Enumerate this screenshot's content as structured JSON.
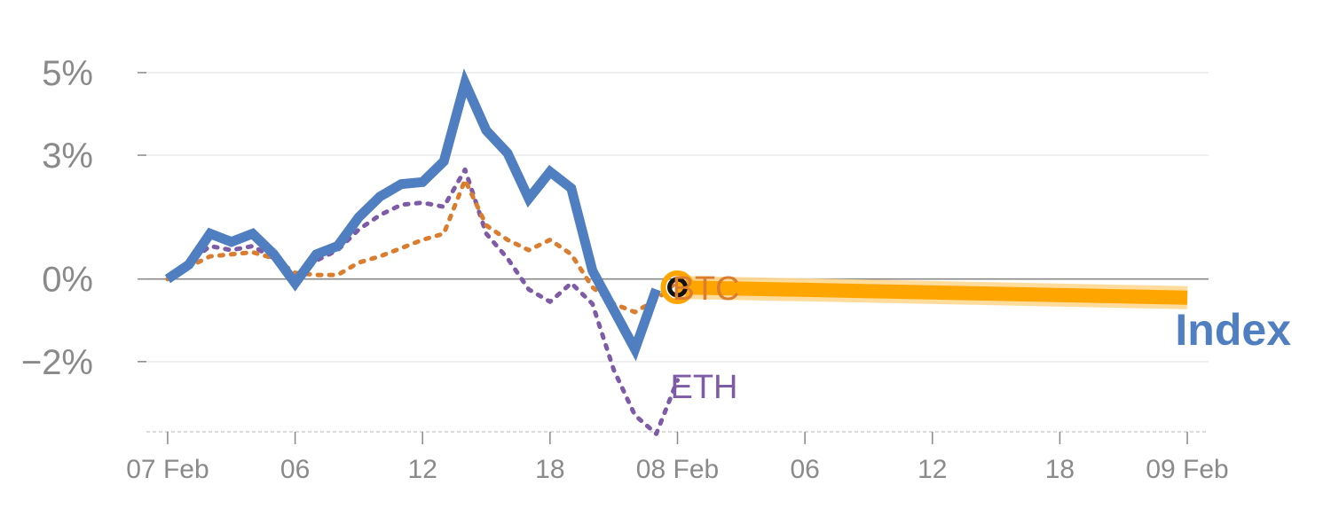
{
  "chart_data": {
    "type": "line",
    "x_ticks": [
      "07 Feb",
      "06",
      "12",
      "18",
      "08 Feb",
      "06",
      "12",
      "18",
      "09 Feb"
    ],
    "x_tick_hours": [
      0,
      6,
      12,
      18,
      24,
      30,
      36,
      42,
      48
    ],
    "y_ticks": [
      {
        "value": 5,
        "label": "5%"
      },
      {
        "value": 3,
        "label": "3%"
      },
      {
        "value": 0,
        "label": "0%"
      },
      {
        "value": -2,
        "label": "−2%"
      }
    ],
    "ylim": [
      -3.7,
      5.9
    ],
    "xlim": [
      -1,
      49
    ],
    "grid": true,
    "colors": {
      "index": "#4f7fc0",
      "btc": "#db7d2e",
      "eth": "#7d5ba6",
      "projection": "#ffa500",
      "projection_glow": "#ffd890",
      "marker_ring": "#ffa500",
      "marker_inner": "#111111",
      "axis": "#888888",
      "grid": "#e6e6e6",
      "tick_text": "#8a8a8a"
    },
    "series": [
      {
        "name": "Index",
        "label": "Index",
        "style": "solid",
        "x": [
          0,
          1,
          2,
          3,
          4,
          5,
          6,
          7,
          8,
          9,
          10,
          11,
          12,
          13,
          14,
          15,
          16,
          17,
          18,
          19,
          20,
          21,
          22,
          23
        ],
        "y": [
          0.0,
          0.35,
          1.1,
          0.9,
          1.1,
          0.6,
          -0.1,
          0.6,
          0.8,
          1.5,
          2.0,
          2.3,
          2.35,
          2.85,
          4.75,
          3.6,
          3.05,
          1.95,
          2.6,
          2.2,
          0.2,
          -0.75,
          -1.7,
          -0.25
        ]
      },
      {
        "name": "BTC",
        "label": "BTC",
        "style": "dotted",
        "x": [
          0,
          1,
          2,
          3,
          4,
          5,
          6,
          7,
          8,
          9,
          10,
          11,
          12,
          13,
          14,
          15,
          16,
          17,
          18,
          19,
          20,
          21,
          22,
          23,
          24
        ],
        "y": [
          0.0,
          0.3,
          0.55,
          0.6,
          0.65,
          0.5,
          0.15,
          0.1,
          0.1,
          0.4,
          0.55,
          0.75,
          0.95,
          1.1,
          2.4,
          1.3,
          0.95,
          0.7,
          0.95,
          0.6,
          -0.2,
          -0.6,
          -0.8,
          -0.5,
          -0.05
        ]
      },
      {
        "name": "ETH",
        "label": "ETH",
        "style": "dotted",
        "x": [
          0,
          1,
          2,
          3,
          4,
          5,
          6,
          7,
          8,
          9,
          10,
          11,
          12,
          13,
          14,
          15,
          16,
          17,
          18,
          19,
          20,
          21,
          22,
          23,
          24
        ],
        "y": [
          0.0,
          0.4,
          0.8,
          0.7,
          0.8,
          0.5,
          -0.05,
          0.45,
          0.7,
          1.2,
          1.55,
          1.8,
          1.85,
          1.75,
          2.65,
          1.1,
          0.5,
          -0.25,
          -0.55,
          -0.1,
          -0.6,
          -2.2,
          -3.3,
          -3.75,
          -2.45
        ]
      },
      {
        "name": "Index projection",
        "label": "",
        "style": "thick",
        "x": [
          24,
          48
        ],
        "y": [
          -0.2,
          -0.45
        ]
      }
    ],
    "marker": {
      "x": 24,
      "y": -0.2
    },
    "labels": {
      "btc": "BTC",
      "eth": "ETH",
      "index": "Index"
    }
  }
}
